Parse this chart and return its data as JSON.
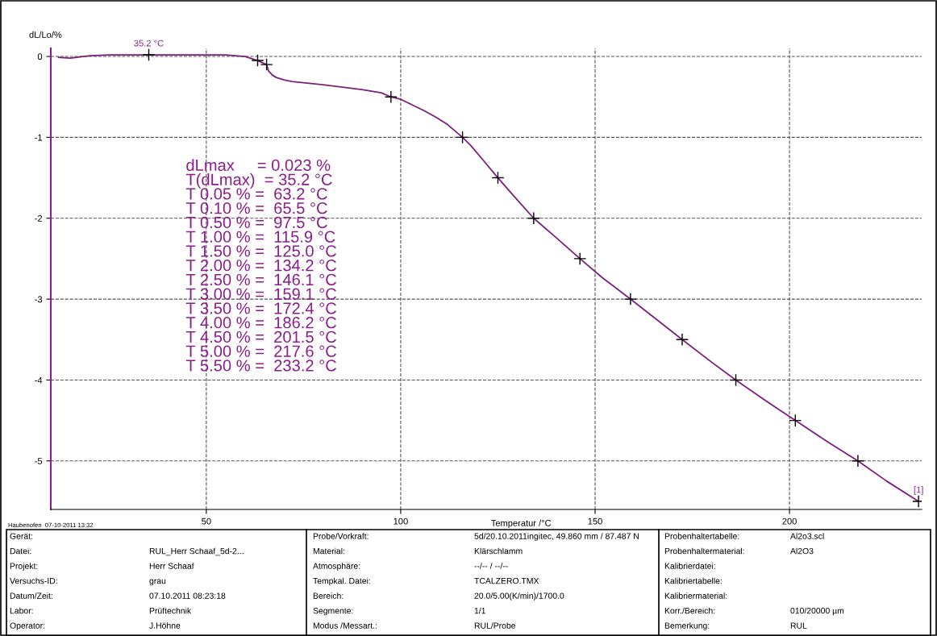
{
  "chart_data": {
    "type": "line",
    "xlabel": "Temperatur /°C",
    "ylabel": "dL/Lo/%",
    "xlim": [
      10,
      234
    ],
    "xticks": [
      50,
      100,
      150,
      200
    ],
    "ylim": [
      -5.6,
      0.1
    ],
    "yticks": [
      0,
      -1,
      -2,
      -3,
      -4,
      -5
    ],
    "grid": true,
    "series": [
      {
        "color": "#7b1f7b",
        "x": [
          12,
          15,
          20,
          25,
          35.2,
          45,
          55,
          60,
          63.2,
          65.5,
          66,
          67,
          68,
          70,
          72,
          76,
          80,
          85,
          90,
          95,
          97.5,
          100,
          103,
          106,
          109,
          112,
          115.9,
          118,
          121,
          125,
          129,
          134.2,
          140,
          146.1,
          152,
          159.1,
          165,
          172.4,
          180,
          186.2,
          194,
          201.5,
          210,
          217.6,
          225,
          233.2
        ],
        "values": [
          -0.01,
          -0.02,
          0.01,
          0.02,
          0.02,
          0.02,
          0.02,
          0.0,
          -0.05,
          -0.1,
          -0.18,
          -0.23,
          -0.26,
          -0.29,
          -0.31,
          -0.33,
          -0.35,
          -0.38,
          -0.41,
          -0.45,
          -0.5,
          -0.53,
          -0.6,
          -0.67,
          -0.75,
          -0.84,
          -1.0,
          -1.1,
          -1.27,
          -1.5,
          -1.72,
          -2.0,
          -2.24,
          -2.5,
          -2.74,
          -3.0,
          -3.22,
          -3.5,
          -3.78,
          -4.0,
          -4.26,
          -4.5,
          -4.77,
          -5.0,
          -5.25,
          -5.5
        ]
      },
      {
        "type": "scatter",
        "color": "#000000",
        "marker": "cross",
        "x": [
          35.2,
          63.2,
          65.5,
          97.5,
          115.9,
          125.0,
          134.2,
          146.1,
          159.1,
          172.4,
          186.2,
          201.5,
          217.6,
          233.2
        ],
        "values": [
          0.02,
          -0.05,
          -0.1,
          -0.5,
          -1.0,
          -1.5,
          -2.0,
          -2.5,
          -3.0,
          -3.5,
          -4.0,
          -4.5,
          -5.0,
          -5.5
        ]
      }
    ],
    "annotations": [
      {
        "text": "35.2 °C",
        "x": 35.2,
        "y": 0.02
      },
      {
        "text": "[1]",
        "x": 233.2,
        "y": -5.5
      },
      "dLmax     = 0.023 %\nT(dLmax)  = 35.2 °C\nT 0.05 % =  63.2 °C\nT 0.10 % =  65.5 °C\nT 0.50 % =  97.5 °C\nT 1.00 % =  115.9 °C\nT 1.50 % =  125.0 °C\nT 2.00 % =  134.2 °C\nT 2.50 % =  146.1 °C\nT 3.00 % =  159.1 °C\nT 3.50 % =  172.4 °C\nT 4.00 % =  186.2 °C\nT 4.50 % =  201.5 °C\nT 5.00 % =  217.6 °C\nT 5.50 % =  233.2 °C",
      "Haubenofen  07-10-2011 13:32",
      "Gerät:",
      "Datei:",
      "Projekt:",
      "Versuchs-ID:",
      "Datum/Zeit:",
      "Labor:",
      "Operator:",
      "RUL_Herr Schaaf_5d-2...",
      "Herr Schaaf",
      "grau",
      "07.10.2011 08:23:18",
      "Prüftechnik",
      "J.Höhne",
      "Probe/Vorkraft:",
      "Material:",
      "Atmosphäre:",
      "Tempkal. Datei:",
      "Bereich:",
      "Segmente:",
      "Modus /Messart.:",
      "5d/20.10.2011ingitec, 49.860 mm / 87.487 N",
      "Klärschlamm",
      "--/-- / --/--",
      "TCALZERO.TMX",
      "20.0/5.00(K/min)/1700.0",
      "1/1",
      "RUL/Probe",
      "Probenhaltertabelle:",
      "Probenhaltermaterial:",
      "Kalibrierdatei:",
      "Kalibriertabelle:",
      "Kalibriermaterial:",
      "Korr./Bereich:",
      "Bemerkung:",
      "Al2o3.scl",
      "Al2O3",
      "010/20000 µm",
      "RUL"
    ]
  }
}
